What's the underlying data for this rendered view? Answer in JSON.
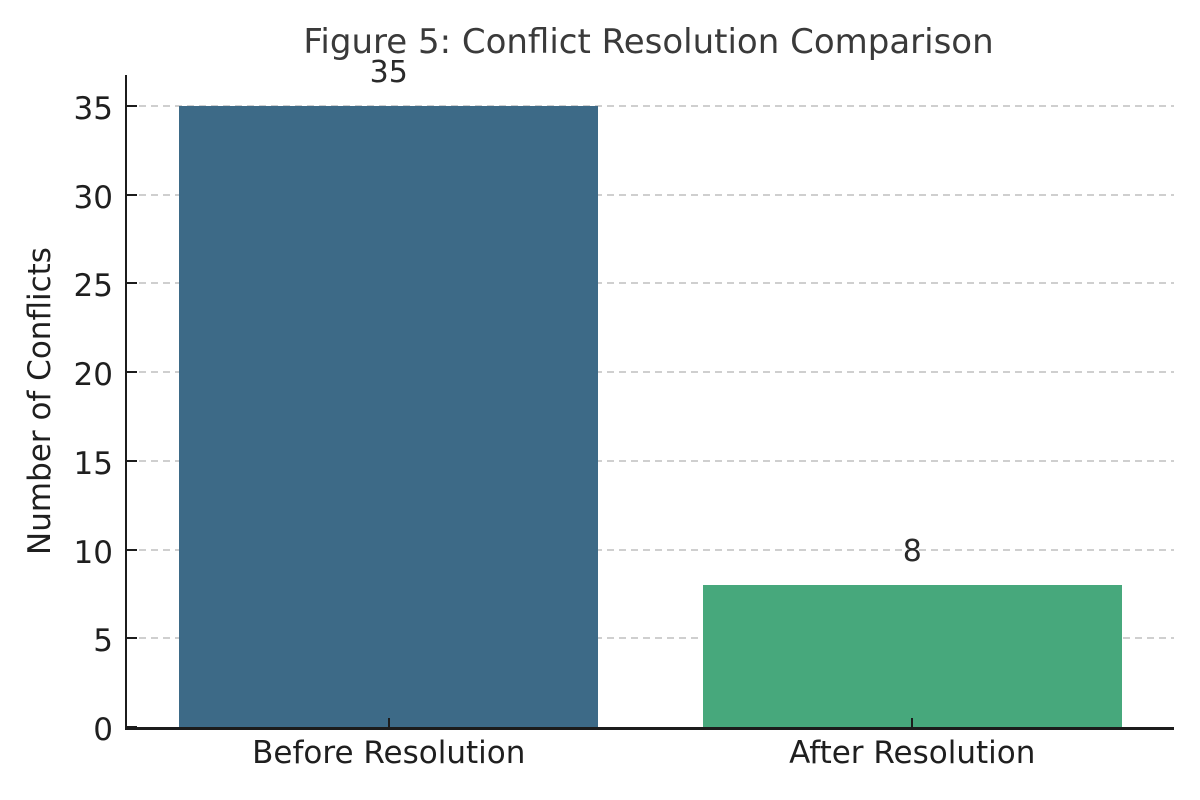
{
  "chart_data": {
    "type": "bar",
    "title": "Figure 5: Conflict Resolution Comparison",
    "xlabel": "",
    "ylabel": "Number of Conflicts",
    "categories": [
      "Before Resolution",
      "After Resolution"
    ],
    "values": [
      35,
      8
    ],
    "value_labels": [
      "35",
      "8"
    ],
    "bar_colors": [
      "#3d6a87",
      "#47a87c"
    ],
    "yticks": [
      0,
      5,
      10,
      15,
      20,
      25,
      30,
      35
    ],
    "ylim": [
      0,
      36.75
    ],
    "bar_width_fraction": 0.8,
    "grid": "horizontal-dashed",
    "grid_color": "#cfcfcf",
    "spine_color": "#1c1c1c",
    "text_color": "#1f1f1f",
    "legend": "none"
  }
}
